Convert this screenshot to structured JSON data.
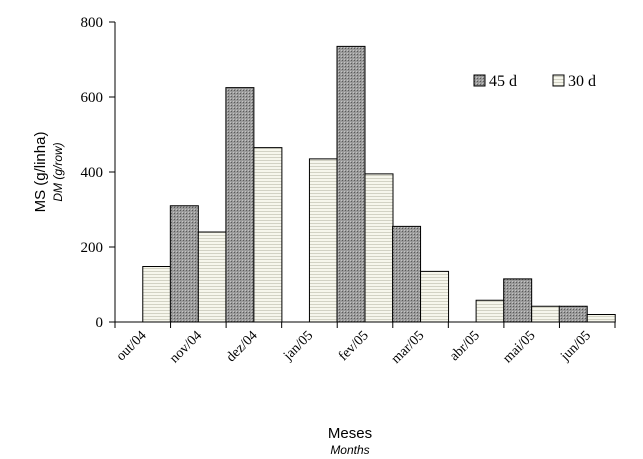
{
  "chart_data": {
    "type": "bar",
    "categories": [
      "out/04",
      "nov/04",
      "dez/04",
      "jan/05",
      "fev/05",
      "mar/05",
      "abr/05",
      "mai/05",
      "jun/05"
    ],
    "series": [
      {
        "name": "45 d",
        "values": [
          0,
          310,
          625,
          0,
          735,
          255,
          0,
          115,
          42
        ],
        "color": "#8c8c8c",
        "pattern": "dark-hatch"
      },
      {
        "name": "30 d",
        "values": [
          148,
          240,
          465,
          435,
          395,
          135,
          58,
          42,
          20
        ],
        "color": "#f0f0e4",
        "pattern": "light-hatch"
      }
    ],
    "ylim": [
      0,
      800
    ],
    "yticks": [
      0,
      200,
      400,
      600,
      800
    ],
    "ylabel": "MS (g/linha)",
    "ylabel_sub": "DM (g/row)",
    "xlabel": "Meses",
    "xlabel_sub": "Months",
    "legend_position": "top-right",
    "grid": false
  }
}
